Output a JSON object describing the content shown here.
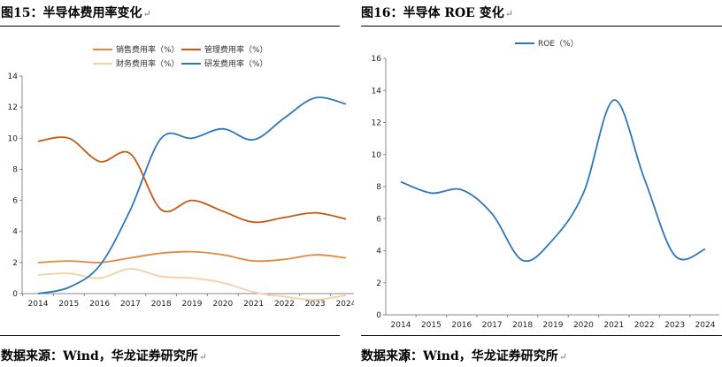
{
  "left_figure": {
    "title": "图15：半导体费用率变化",
    "return_mark": "↵",
    "source": "数据来源：Wind，华龙证券研究所",
    "source_return_mark": "↵"
  },
  "right_figure": {
    "title": "图16：半导体 ROE 变化",
    "return_mark": "↵",
    "source": "数据来源：Wind，华龙证券研究所",
    "source_return_mark": "↵"
  },
  "chart_data": [
    {
      "type": "line",
      "title": "",
      "xlabel": "",
      "ylabel": "",
      "x": [
        "2014",
        "2015",
        "2016",
        "2017",
        "2018",
        "2019",
        "2020",
        "2021",
        "2022",
        "2023",
        "2024"
      ],
      "ylim": [
        0,
        14
      ],
      "yticks": [
        "0",
        "2",
        "4",
        "6",
        "8",
        "10",
        "12",
        "14"
      ],
      "legend_position": "top",
      "series": [
        {
          "name": "销售费用率（%）",
          "color": "#e08a3e",
          "values": [
            2.0,
            2.1,
            2.0,
            2.3,
            2.6,
            2.7,
            2.5,
            2.1,
            2.2,
            2.5,
            2.3
          ]
        },
        {
          "name": "管理费用率（%）",
          "color": "#c65a12",
          "values": [
            9.8,
            10.0,
            8.5,
            9.0,
            5.4,
            6.0,
            5.3,
            4.6,
            4.9,
            5.2,
            4.8
          ]
        },
        {
          "name": "财务费用率（%）",
          "color": "#f6cfa6",
          "values": [
            1.2,
            1.3,
            1.0,
            1.6,
            1.1,
            1.0,
            0.7,
            0.1,
            -0.2,
            -0.4,
            -0.1
          ]
        },
        {
          "name": "研发费用率（%）",
          "color": "#2e77b8",
          "values": [
            0.0,
            0.4,
            1.8,
            5.4,
            10.0,
            10.0,
            10.6,
            9.9,
            11.3,
            12.6,
            12.2
          ]
        }
      ]
    },
    {
      "type": "line",
      "title": "",
      "xlabel": "",
      "ylabel": "",
      "x": [
        "2014",
        "2015",
        "2016",
        "2017",
        "2018",
        "2019",
        "2020",
        "2021",
        "2022",
        "2023",
        "2024"
      ],
      "ylim": [
        0,
        16
      ],
      "yticks": [
        "0",
        "2",
        "4",
        "6",
        "8",
        "10",
        "12",
        "14",
        "16"
      ],
      "legend_position": "top",
      "series": [
        {
          "name": "ROE（%）",
          "color": "#2e77b8",
          "values": [
            8.3,
            7.6,
            7.8,
            6.3,
            3.4,
            4.7,
            7.6,
            13.4,
            8.5,
            3.7,
            4.1
          ]
        }
      ]
    }
  ]
}
